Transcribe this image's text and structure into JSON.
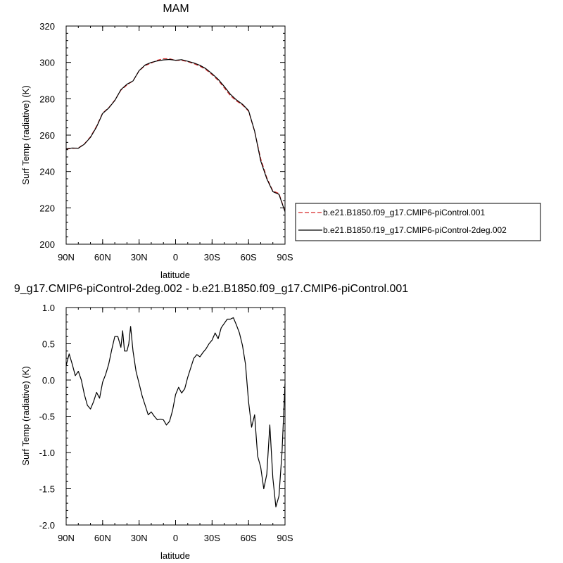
{
  "chart_data": [
    {
      "type": "line",
      "title": "MAM",
      "xlabel": "latitude",
      "ylabel": "Surf Temp (radiative) (K)",
      "x_tick_labels": [
        "90N",
        "60N",
        "30N",
        "0",
        "30S",
        "60S",
        "90S"
      ],
      "x_tick_values": [
        90,
        60,
        30,
        0,
        -30,
        -60,
        -90
      ],
      "xlim": [
        90,
        -90
      ],
      "ylim": [
        200,
        320
      ],
      "y_ticks": [
        200,
        220,
        240,
        260,
        280,
        300,
        320
      ],
      "grid": false,
      "legend_position": "right",
      "series": [
        {
          "name": "b.e21.B1850.f09_g17.CMIP6-piControl.001",
          "color": "#d62728",
          "dash": "dashed",
          "x": [
            90,
            85,
            80,
            75,
            70,
            65,
            60,
            55,
            50,
            45,
            40,
            35,
            30,
            25,
            20,
            15,
            10,
            5,
            0,
            -5,
            -10,
            -15,
            -20,
            -25,
            -30,
            -35,
            -40,
            -45,
            -50,
            -55,
            -60,
            -65,
            -70,
            -75,
            -80,
            -85,
            -90
          ],
          "y": [
            252.3,
            252.7,
            252.9,
            255.2,
            259.1,
            264.9,
            272.1,
            275.1,
            279.2,
            284.7,
            287.6,
            289.8,
            295.4,
            298.3,
            299.6,
            301.2,
            302.0,
            302.0,
            301.1,
            301.1,
            300.4,
            299.3,
            297.9,
            296.0,
            293.3,
            290.1,
            286.0,
            281.7,
            278.8,
            276.6,
            273.2,
            262.0,
            247.1,
            236.6,
            229.3,
            227.9,
            218.0
          ]
        },
        {
          "name": "b.e21.B1850.f19_g17.CMIP6-piControl-2deg.002",
          "color": "#000000",
          "dash": "solid",
          "x": [
            90,
            85,
            80,
            75,
            70,
            65,
            60,
            55,
            50,
            45,
            40,
            35,
            30,
            25,
            20,
            15,
            10,
            5,
            0,
            -5,
            -10,
            -15,
            -20,
            -25,
            -30,
            -35,
            -40,
            -45,
            -50,
            -55,
            -60,
            -65,
            -70,
            -75,
            -80,
            -85,
            -90
          ],
          "y": [
            252.5,
            252.9,
            252.8,
            255.0,
            258.8,
            264.5,
            271.9,
            274.9,
            279.0,
            285.0,
            288.0,
            289.8,
            295.5,
            298.6,
            300.0,
            300.8,
            301.4,
            301.6,
            301.2,
            301.5,
            300.6,
            299.7,
            298.4,
            296.5,
            293.8,
            290.7,
            286.8,
            282.5,
            279.4,
            277.0,
            273.5,
            262.2,
            245.9,
            236.0,
            228.9,
            227.4,
            217.9
          ]
        }
      ]
    },
    {
      "type": "line",
      "title": "9_g17.CMIP6-piControl-2deg.002 - b.e21.B1850.f09_g17.CMIP6-piControl.001",
      "xlabel": "latitude",
      "ylabel": "Surf Temp (radiative) (K)",
      "x_tick_labels": [
        "90N",
        "60N",
        "30N",
        "0",
        "30S",
        "60S",
        "90S"
      ],
      "x_tick_values": [
        90,
        60,
        30,
        0,
        -30,
        -60,
        -90
      ],
      "y_tick_labels": [
        "-2.0",
        "-1.5",
        "-1.0",
        "-0.5",
        "0.0",
        "0.5",
        "1.0"
      ],
      "xlim": [
        90,
        -90
      ],
      "ylim": [
        -2.0,
        1.0
      ],
      "y_ticks": [
        -2.0,
        -1.5,
        -1.0,
        -0.5,
        0.0,
        0.5,
        1.0
      ],
      "grid": false,
      "series": [
        {
          "color": "#000000",
          "dash": "solid",
          "x": [
            90,
            87.5,
            85,
            82.5,
            80,
            77.5,
            75,
            72.5,
            70,
            67.5,
            65,
            62.5,
            60,
            57.5,
            55,
            52.5,
            50,
            47.5,
            45,
            43.5,
            42,
            40,
            38.5,
            37,
            35,
            32.5,
            30,
            27.5,
            25,
            22.5,
            20,
            17.5,
            15,
            12.5,
            10,
            7.5,
            5,
            2.5,
            0,
            -2.5,
            -5,
            -7.5,
            -10,
            -12.5,
            -15,
            -17.5,
            -20,
            -22.5,
            -25,
            -27.5,
            -30,
            -32.5,
            -35,
            -37.5,
            -40,
            -42.5,
            -45,
            -47.5,
            -50,
            -52.5,
            -55,
            -57.5,
            -60,
            -62.5,
            -65,
            -67.5,
            -70,
            -72.5,
            -75,
            -77.5,
            -80,
            -82.5,
            -85,
            -87.5,
            -90
          ],
          "y": [
            0.2,
            0.36,
            0.22,
            0.06,
            0.12,
            0.0,
            -0.2,
            -0.35,
            -0.4,
            -0.3,
            -0.17,
            -0.25,
            -0.03,
            0.08,
            0.22,
            0.42,
            0.6,
            0.6,
            0.45,
            0.68,
            0.4,
            0.4,
            0.5,
            0.74,
            0.4,
            0.12,
            -0.05,
            -0.22,
            -0.35,
            -0.48,
            -0.44,
            -0.5,
            -0.55,
            -0.54,
            -0.55,
            -0.62,
            -0.57,
            -0.42,
            -0.2,
            -0.1,
            -0.18,
            -0.12,
            0.04,
            0.17,
            0.3,
            0.35,
            0.32,
            0.38,
            0.43,
            0.5,
            0.55,
            0.65,
            0.57,
            0.72,
            0.78,
            0.84,
            0.84,
            0.86,
            0.76,
            0.65,
            0.48,
            0.22,
            -0.3,
            -0.65,
            -0.48,
            -1.05,
            -1.2,
            -1.5,
            -1.3,
            -0.62,
            -1.35,
            -1.75,
            -1.6,
            -1.0,
            -0.05
          ]
        }
      ]
    }
  ]
}
